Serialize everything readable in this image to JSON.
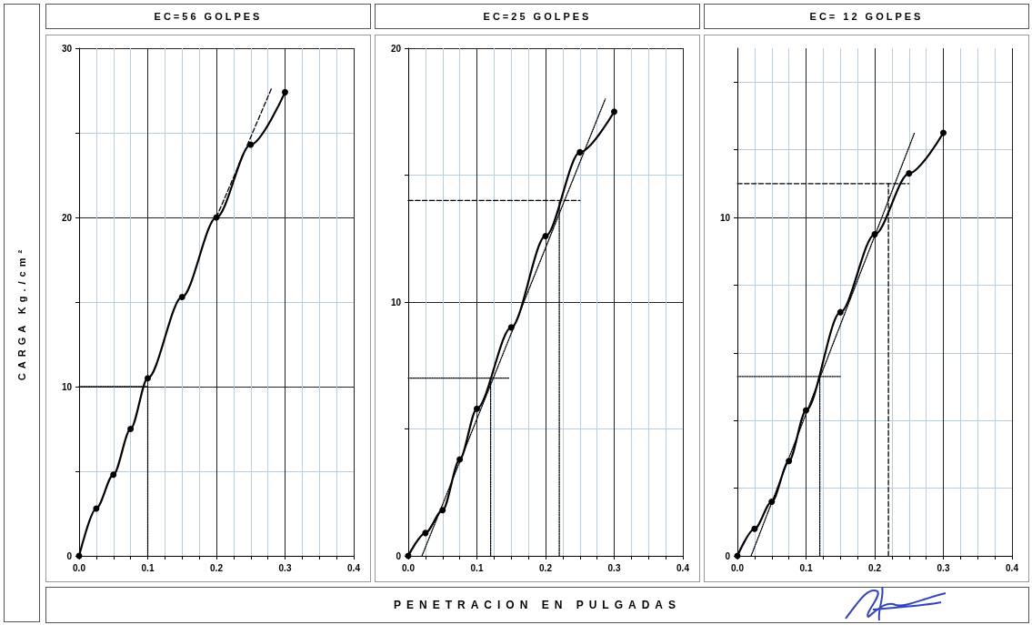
{
  "chart_data": [
    {
      "type": "line",
      "title": "EC=56 GOLPES",
      "ylabel": "CARGA  Kg./cm²",
      "grid": true,
      "xlim": [
        0,
        0.4
      ],
      "ylim": [
        0,
        30
      ],
      "xticks": [
        {
          "value": 0,
          "label": "0.0"
        },
        {
          "value": 0.025,
          "label": null
        },
        {
          "value": 0.05,
          "label": null
        },
        {
          "value": 0.075,
          "label": null
        },
        0.1,
        {
          "value": 0.125,
          "label": null
        },
        {
          "value": 0.15,
          "label": null
        },
        {
          "value": 0.175,
          "label": null
        },
        0.2,
        {
          "value": 0.225,
          "label": null
        },
        {
          "value": 0.25,
          "label": null
        },
        {
          "value": 0.275,
          "label": null
        },
        0.3,
        {
          "value": 0.325,
          "label": null
        },
        {
          "value": 0.35,
          "label": null
        },
        {
          "value": 0.375,
          "label": null
        },
        0.4
      ],
      "yticks": [
        0,
        {
          "value": 5,
          "label": null
        },
        10,
        {
          "value": 15,
          "label": null
        },
        20,
        {
          "value": 25,
          "label": null
        },
        30
      ],
      "series": [
        {
          "color": "#000000",
          "marker": "circle",
          "line_style": "solid",
          "x": [
            0,
            0.025,
            0.05,
            0.075,
            0.1,
            0.15,
            0.2,
            0.25,
            0.3
          ],
          "values": [
            0,
            2.8,
            4.8,
            7.5,
            10.5,
            15.3,
            20.0,
            24.3,
            27.4
          ]
        },
        {
          "color": "#000000",
          "marker": "none",
          "line_style": "dashed",
          "x": [
            0.2,
            0.28
          ],
          "values": [
            20,
            27.6
          ]
        },
        {
          "color": "#000000",
          "marker": "none",
          "line_style": "dotted",
          "x": [
            0,
            0.1
          ],
          "values": [
            10,
            10
          ]
        },
        {
          "color": "#000000",
          "marker": "none",
          "line_style": "dotted",
          "x": [
            0.1,
            0.1
          ],
          "values": [
            0,
            10
          ]
        }
      ]
    },
    {
      "type": "line",
      "title": "EC=25 GOLPES",
      "xlabel": "PENETRACION EN PULGADAS",
      "grid": true,
      "xlim": [
        0,
        0.4
      ],
      "ylim": [
        0,
        20
      ],
      "xticks": [
        {
          "value": 0,
          "label": "0.0"
        },
        {
          "value": 0.025,
          "label": null
        },
        {
          "value": 0.05,
          "label": null
        },
        {
          "value": 0.075,
          "label": null
        },
        0.1,
        {
          "value": 0.125,
          "label": null
        },
        {
          "value": 0.15,
          "label": null
        },
        {
          "value": 0.175,
          "label": null
        },
        0.2,
        {
          "value": 0.225,
          "label": null
        },
        {
          "value": 0.25,
          "label": null
        },
        {
          "value": 0.275,
          "label": null
        },
        0.3,
        {
          "value": 0.325,
          "label": null
        },
        {
          "value": 0.35,
          "label": null
        },
        {
          "value": 0.375,
          "label": null
        },
        0.4
      ],
      "yticks": [
        0,
        {
          "value": 5,
          "label": null
        },
        10,
        {
          "value": 15,
          "label": null
        },
        20
      ],
      "series": [
        {
          "color": "#000000",
          "marker": "circle",
          "line_style": "solid",
          "x": [
            0,
            0.025,
            0.05,
            0.075,
            0.1,
            0.15,
            0.2,
            0.25,
            0.3
          ],
          "values": [
            0,
            0.9,
            1.8,
            3.8,
            5.8,
            9.0,
            12.6,
            15.9,
            17.5
          ]
        },
        {
          "color": "#000000",
          "marker": "none",
          "line_style": "dotted",
          "x": [
            0.02,
            0.287
          ],
          "values": [
            0,
            18.0
          ]
        },
        {
          "color": "#000000",
          "marker": "none",
          "line_style": "dotted",
          "x": [
            0,
            0.148
          ],
          "values": [
            7.0,
            7.0
          ]
        },
        {
          "color": "#000000",
          "marker": "none",
          "line_style": "dotted",
          "x": [
            0.12,
            0.12
          ],
          "values": [
            0,
            7.0
          ]
        },
        {
          "color": "#000000",
          "marker": "none",
          "line_style": "dashed",
          "x": [
            0,
            0.25
          ],
          "values": [
            14.0,
            14.0
          ]
        },
        {
          "color": "#000000",
          "marker": "none",
          "line_style": "dotted",
          "x": [
            0.22,
            0.22
          ],
          "values": [
            0,
            14.0
          ]
        }
      ]
    },
    {
      "type": "line",
      "title": "EC= 12 GOLPES",
      "grid": true,
      "xlim": [
        0,
        0.4
      ],
      "ylim": [
        0,
        15
      ],
      "xticks": [
        {
          "value": 0,
          "label": "0.0"
        },
        {
          "value": 0.025,
          "label": null
        },
        {
          "value": 0.05,
          "label": null
        },
        {
          "value": 0.075,
          "label": null
        },
        0.1,
        {
          "value": 0.125,
          "label": null
        },
        {
          "value": 0.15,
          "label": null
        },
        {
          "value": 0.175,
          "label": null
        },
        0.2,
        {
          "value": 0.225,
          "label": null
        },
        {
          "value": 0.25,
          "label": null
        },
        {
          "value": 0.275,
          "label": null
        },
        0.3,
        {
          "value": 0.325,
          "label": null
        },
        {
          "value": 0.35,
          "label": null
        },
        {
          "value": 0.375,
          "label": null
        },
        0.4
      ],
      "yticks": [
        0,
        {
          "value": 2,
          "label": null
        },
        {
          "value": 4,
          "label": null
        },
        {
          "value": 6,
          "label": null
        },
        {
          "value": 8,
          "label": null
        },
        10,
        {
          "value": 12,
          "label": null
        },
        {
          "value": 14,
          "label": null
        }
      ],
      "series": [
        {
          "color": "#000000",
          "marker": "circle",
          "line_style": "solid",
          "x": [
            0,
            0.025,
            0.05,
            0.075,
            0.1,
            0.15,
            0.2,
            0.25,
            0.3
          ],
          "values": [
            0,
            0.8,
            1.6,
            2.8,
            4.3,
            7.2,
            9.5,
            11.3,
            12.5
          ]
        },
        {
          "color": "#000000",
          "marker": "none",
          "line_style": "dotted",
          "x": [
            0.02,
            0.258
          ],
          "values": [
            0,
            12.5
          ]
        },
        {
          "color": "#000000",
          "marker": "none",
          "line_style": "dotted",
          "x": [
            0,
            0.15
          ],
          "values": [
            5.3,
            5.3
          ]
        },
        {
          "color": "#000000",
          "marker": "none",
          "line_style": "dotted",
          "x": [
            0.12,
            0.12
          ],
          "values": [
            0,
            5.3
          ]
        },
        {
          "color": "#000000",
          "marker": "none",
          "line_style": "dashed",
          "x": [
            0,
            0.25
          ],
          "values": [
            11.0,
            11.0
          ]
        },
        {
          "color": "#000000",
          "marker": "none",
          "line_style": "dashed",
          "x": [
            0.22,
            0.22
          ],
          "values": [
            0,
            11.0
          ]
        }
      ]
    }
  ]
}
